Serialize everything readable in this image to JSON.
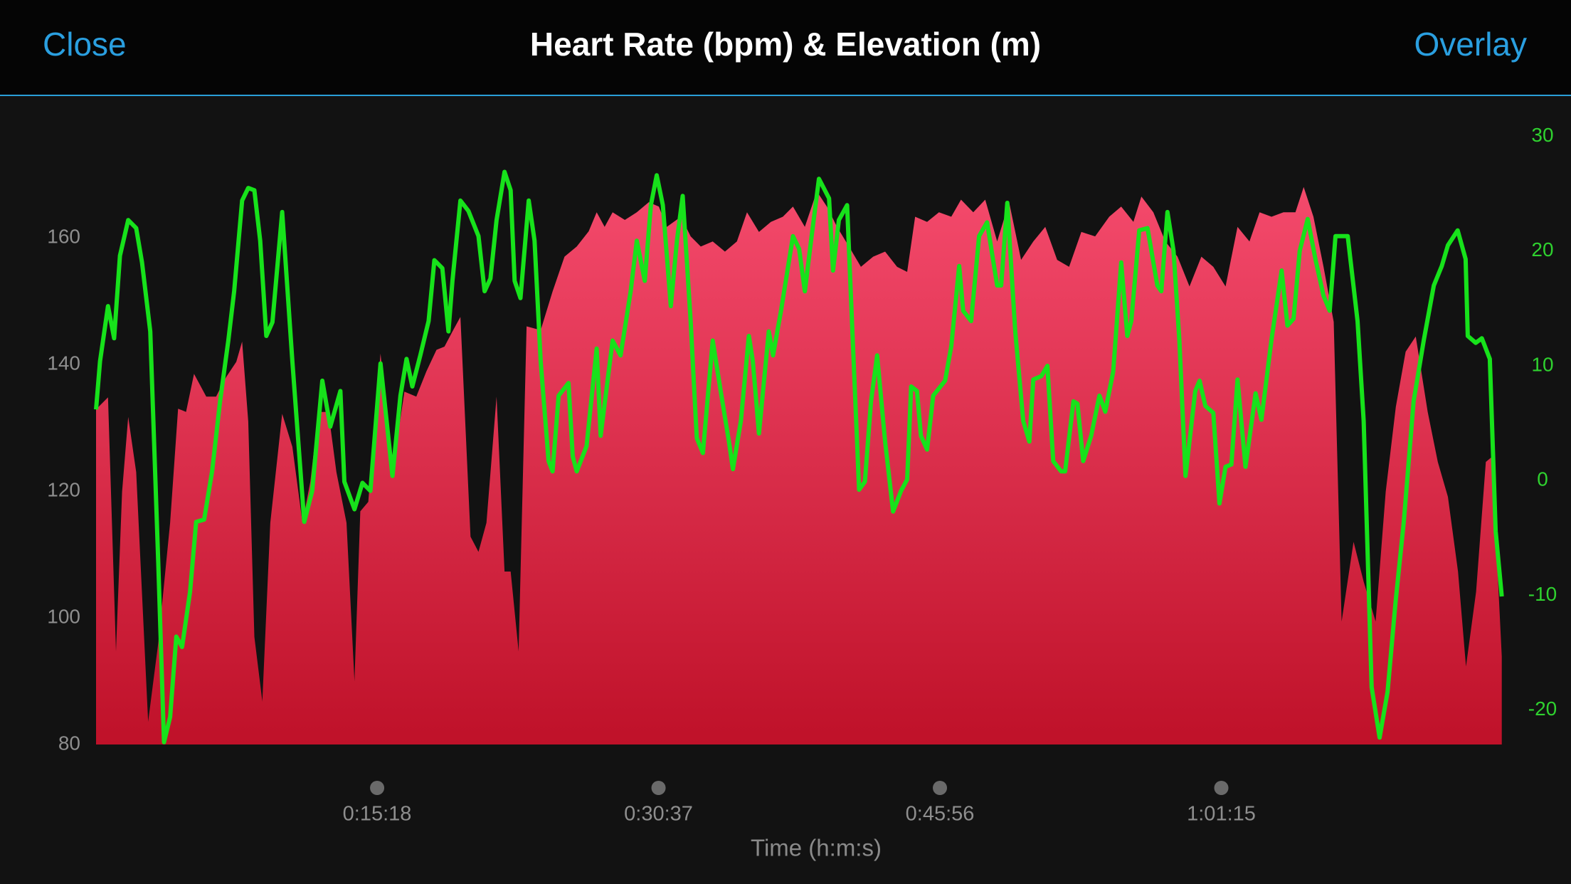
{
  "header": {
    "close": "Close",
    "overlay": "Overlay"
  },
  "chart_data": {
    "type": "area",
    "title": "Heart Rate (bpm) & Elevation (m)",
    "xlabel": "Time (h:m:s)",
    "xlim": [
      0,
      4594
    ],
    "xticks": [
      {
        "value": 918,
        "label": "0:15:18"
      },
      {
        "value": 1837,
        "label": "0:30:37"
      },
      {
        "value": 2756,
        "label": "0:45:56"
      },
      {
        "value": 3675,
        "label": "1:01:15"
      }
    ],
    "ylim": [
      80,
      176
    ],
    "yticks": [
      80,
      100,
      120,
      140,
      160
    ],
    "y2lim": [
      -23,
      30
    ],
    "y2ticks": [
      -20,
      -10,
      0,
      10,
      20,
      30
    ],
    "grid": false,
    "series": [
      {
        "type": "area",
        "color": "#f44a6c",
        "color_bottom": "#bf1129",
        "x": [
          0,
          39,
          65,
          85,
          105,
          131,
          170,
          203,
          242,
          268,
          294,
          320,
          360,
          392,
          425,
          458,
          477,
          497,
          517,
          543,
          569,
          608,
          641,
          674,
          700,
          726,
          759,
          785,
          818,
          844,
          863,
          889,
          929,
          968,
          1007,
          1046,
          1079,
          1112,
          1138,
          1164,
          1190,
          1223,
          1249,
          1275,
          1308,
          1334,
          1354,
          1380,
          1406,
          1452,
          1491,
          1530,
          1570,
          1609,
          1635,
          1661,
          1687,
          1727,
          1766,
          1805,
          1838,
          1864,
          1910,
          1942,
          1975,
          2014,
          2054,
          2093,
          2126,
          2165,
          2204,
          2243,
          2276,
          2315,
          2354,
          2387,
          2420,
          2459,
          2498,
          2538,
          2577,
          2616,
          2649,
          2675,
          2714,
          2753,
          2793,
          2825,
          2865,
          2904,
          2943,
          2982,
          3021,
          3061,
          3100,
          3139,
          3178,
          3218,
          3263,
          3309,
          3348,
          3388,
          3414,
          3453,
          3492,
          3532,
          3571,
          3610,
          3649,
          3689,
          3728,
          3767,
          3800,
          3839,
          3878,
          3917,
          3944,
          3976,
          4009,
          4042,
          4068,
          4107,
          4140,
          4179,
          4212,
          4245,
          4277,
          4310,
          4349,
          4382,
          4415,
          4448,
          4474,
          4507,
          4539,
          4559,
          4591
        ],
        "values": [
          132.9,
          134.8,
          94.7,
          119.9,
          131.7,
          123,
          83.6,
          96,
          115,
          133,
          132.5,
          138.5,
          134.9,
          134.9,
          138,
          140.4,
          143.6,
          131,
          97,
          86.8,
          115,
          132.2,
          127,
          115,
          121.5,
          132.5,
          132.5,
          123,
          115,
          90,
          116.8,
          118.3,
          141.7,
          123,
          135.7,
          134.9,
          138.9,
          142.3,
          142.8,
          145.2,
          147.5,
          112.8,
          110.4,
          115,
          134.9,
          107.3,
          107.3,
          94.7,
          146,
          145.4,
          151.5,
          157,
          158.6,
          161,
          164,
          161.7,
          164,
          162.8,
          164,
          165.6,
          164.9,
          161.7,
          163.3,
          160.2,
          158.6,
          159.4,
          157.8,
          159.4,
          164,
          160.9,
          162.5,
          163.3,
          164.9,
          161.7,
          167.3,
          164.9,
          161.7,
          158.6,
          155.4,
          157,
          157.8,
          155.4,
          154.6,
          163.3,
          162.5,
          164,
          163.3,
          166,
          164,
          166,
          159.4,
          165.6,
          156.5,
          159.4,
          161.7,
          156.5,
          155.4,
          160.9,
          160.2,
          163.3,
          164.9,
          162.5,
          166.5,
          164,
          159.4,
          157,
          152.3,
          157,
          155.4,
          152.3,
          161.7,
          159.4,
          164,
          163.3,
          164,
          164,
          168,
          163.3,
          155.4,
          146.7,
          99.4,
          112,
          105.7,
          99.4,
          119.9,
          133.3,
          142,
          144.4,
          132.5,
          124.6,
          119.1,
          107.3,
          92.3,
          104.1,
          124.6,
          125.4,
          93.9
        ]
      },
      {
        "type": "line",
        "axis": "y2",
        "color": "#17e21b",
        "x": [
          0,
          13,
          39,
          59,
          78,
          105,
          131,
          150,
          177,
          203,
          222,
          242,
          262,
          281,
          307,
          327,
          353,
          379,
          405,
          432,
          451,
          477,
          497,
          517,
          536,
          556,
          576,
          608,
          641,
          680,
          706,
          739,
          765,
          798,
          811,
          844,
          870,
          896,
          929,
          968,
          994,
          1014,
          1033,
          1059,
          1086,
          1105,
          1131,
          1151,
          1164,
          1190,
          1216,
          1249,
          1269,
          1288,
          1308,
          1334,
          1354,
          1367,
          1386,
          1413,
          1432,
          1452,
          1478,
          1491,
          1511,
          1543,
          1557,
          1570,
          1602,
          1635,
          1648,
          1687,
          1713,
          1746,
          1766,
          1792,
          1812,
          1831,
          1851,
          1877,
          1897,
          1916,
          1942,
          1962,
          1982,
          2014,
          2040,
          2067,
          2080,
          2106,
          2132,
          2145,
          2165,
          2197,
          2211,
          2237,
          2276,
          2296,
          2315,
          2335,
          2361,
          2394,
          2407,
          2426,
          2453,
          2466,
          2492,
          2511,
          2531,
          2551,
          2577,
          2603,
          2629,
          2649,
          2662,
          2681,
          2694,
          2714,
          2734,
          2773,
          2793,
          2819,
          2832,
          2858,
          2884,
          2910,
          2943,
          2956,
          2976,
          3002,
          3028,
          3048,
          3061,
          3087,
          3107,
          3126,
          3152,
          3165,
          3192,
          3205,
          3224,
          3250,
          3277,
          3296,
          3322,
          3348,
          3368,
          3381,
          3407,
          3434,
          3466,
          3479,
          3499,
          3519,
          3538,
          3558,
          3590,
          3604,
          3623,
          3649,
          3669,
          3689,
          3708,
          3728,
          3754,
          3787,
          3806,
          3839,
          3872,
          3891,
          3911,
          3931,
          3957,
          3983,
          4009,
          4029,
          4048,
          4088,
          4120,
          4140,
          4166,
          4192,
          4218,
          4244,
          4271,
          4303,
          4336,
          4369,
          4395,
          4415,
          4447,
          4473,
          4480,
          4506,
          4526,
          4552,
          4571,
          4591
        ],
        "values": [
          6.2,
          10.4,
          15.2,
          12.4,
          19.6,
          22.7,
          22,
          19,
          13,
          -7.1,
          -22.8,
          -20.6,
          -13.6,
          -14.5,
          -9.7,
          -3.6,
          -3.4,
          0.8,
          6.9,
          12.2,
          16.5,
          24.4,
          25.5,
          25.3,
          20.9,
          12.6,
          13.8,
          23.4,
          10.4,
          -3.6,
          -0.9,
          8.7,
          4.7,
          7.8,
          -0.1,
          -2.5,
          -0.2,
          -0.9,
          10.2,
          0.4,
          7.4,
          10.6,
          8.2,
          10.9,
          13.9,
          19.2,
          18.5,
          13,
          17.4,
          24.4,
          23.5,
          21.3,
          16.5,
          17.6,
          22.7,
          26.9,
          25.3,
          17.4,
          15.9,
          24.4,
          20.9,
          10.4,
          1.7,
          0.8,
          7.4,
          8.5,
          2.1,
          0.8,
          3,
          11.5,
          3.9,
          12.2,
          10.9,
          16.5,
          20.9,
          17.4,
          24,
          26.6,
          24,
          15.2,
          20.9,
          24.8,
          13.9,
          3.7,
          2.4,
          12.2,
          7.8,
          3.4,
          1,
          5.2,
          12.6,
          10.4,
          4.1,
          13,
          10.9,
          14.8,
          21.3,
          20.2,
          16.5,
          20.9,
          26.3,
          24.6,
          18.3,
          22.7,
          24,
          15.7,
          -0.8,
          -0.1,
          6.9,
          10.9,
          3.4,
          -2.7,
          -0.9,
          0.1,
          8.2,
          7.8,
          3.9,
          2.7,
          7.4,
          8.7,
          11.7,
          18.7,
          14.8,
          13.9,
          21.3,
          22.5,
          17,
          17,
          24.2,
          13,
          5.2,
          3.4,
          8.8,
          9.1,
          10,
          1.7,
          0.8,
          0.8,
          6.9,
          6.7,
          1.7,
          3.9,
          7.4,
          6,
          9.5,
          19,
          12.6,
          13.9,
          21.8,
          22,
          17,
          16.5,
          23.4,
          20,
          12.2,
          0.4,
          7.8,
          8.7,
          6.5,
          5.9,
          -2,
          1.2,
          1.4,
          8.8,
          1.2,
          7.6,
          5.3,
          12.3,
          18.3,
          13.5,
          14.1,
          20,
          22.8,
          19.2,
          16.1,
          14.8,
          21.3,
          21.3,
          13.9,
          5.2,
          -18,
          -22.4,
          -18.4,
          -10.6,
          -3.6,
          6.9,
          12.2,
          17,
          18.7,
          20.5,
          21.8,
          19.3,
          12.6,
          12,
          12.4,
          10.6,
          -4.4,
          -10.1
        ]
      }
    ]
  }
}
